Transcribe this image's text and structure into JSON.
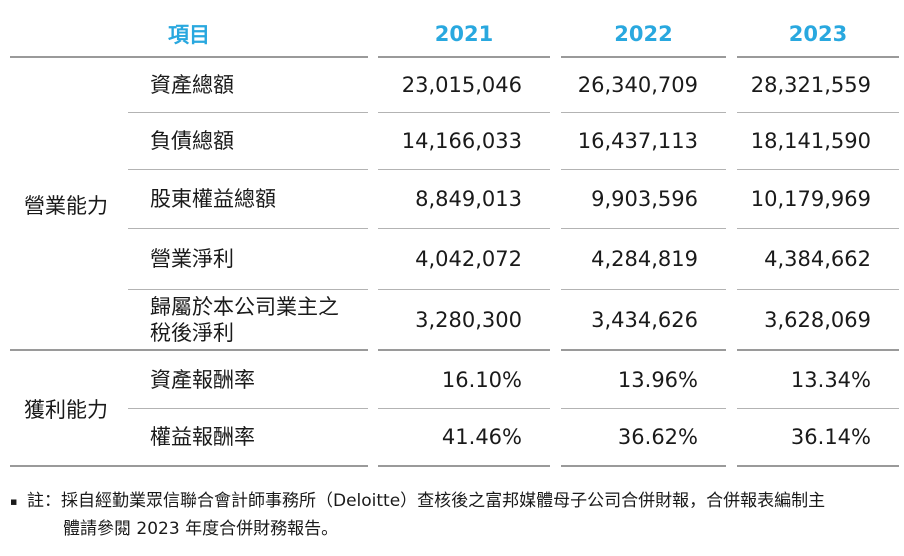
{
  "header": {
    "item": "項目",
    "years": [
      "2021",
      "2022",
      "2023"
    ]
  },
  "groups": [
    {
      "label": "營業能力",
      "rows": [
        {
          "label": "資產總額",
          "values": [
            "23,015,046",
            "26,340,709",
            "28,321,559"
          ]
        },
        {
          "label": "負債總額",
          "values": [
            "14,166,033",
            "16,437,113",
            "18,141,590"
          ]
        },
        {
          "label": "股東權益總額",
          "values": [
            "8,849,013",
            "9,903,596",
            "10,179,969"
          ]
        },
        {
          "label": "營業淨利",
          "values": [
            "4,042,072",
            "4,284,819",
            "4,384,662"
          ]
        },
        {
          "label": "歸屬於本公司業主之\n稅後淨利",
          "values": [
            "3,280,300",
            "3,434,626",
            "3,628,069"
          ]
        }
      ]
    },
    {
      "label": "獲利能力",
      "rows": [
        {
          "label": "資產報酬率",
          "values": [
            "16.10%",
            "13.96%",
            "13.34%"
          ]
        },
        {
          "label": "權益報酬率",
          "values": [
            "41.46%",
            "36.62%",
            "36.14%"
          ]
        }
      ]
    }
  ],
  "footnote": {
    "bullet": "▪",
    "text": "註：採自經勤業眾信聯合會計師事務所（Deloitte）查核後之富邦媒體母子公司合併財報，合併報表編制主\n體請參閱 2023 年度合併財務報告。"
  },
  "colors": {
    "accent": "#29A8DF",
    "text": "#1a1a1a",
    "line_minor": "#b3b3b3",
    "line_major": "#9a9a9a"
  }
}
